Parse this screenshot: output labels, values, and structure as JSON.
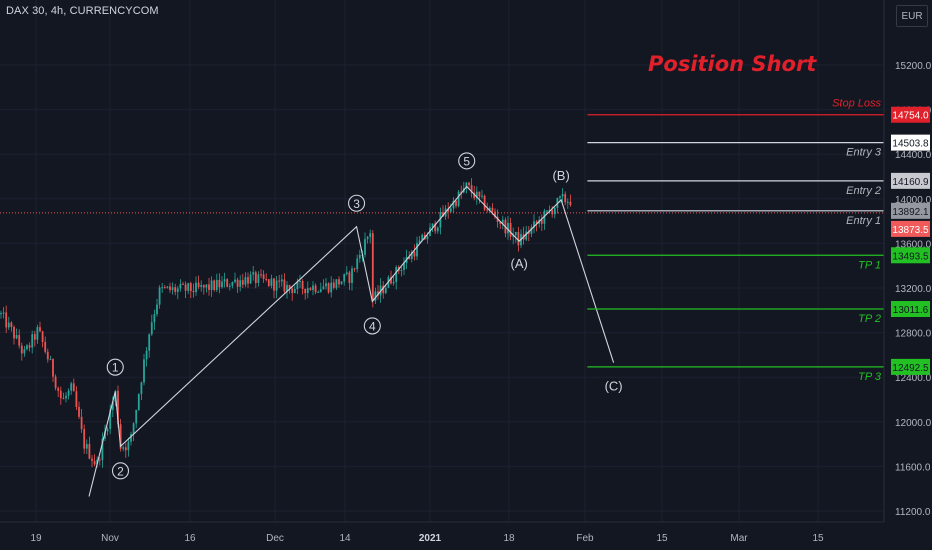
{
  "header": {
    "symbol": "DAX 30, 4h, CURRENCYCOM",
    "currency": "EUR",
    "annotation_title": "Position Short"
  },
  "colors": {
    "background": "#131722",
    "grid": "#1c2030",
    "axis_text": "#b2b5be",
    "up_candle": "#26a69a",
    "down_candle": "#ef5350",
    "wave_line": "#d1d4dc",
    "stop_loss": "#e0202a",
    "entry": "#d1d4dc",
    "take_profit": "#22c022",
    "current_price": "#f05a5a",
    "title": "#e0202a"
  },
  "chart_data": {
    "type": "candlestick",
    "title": "DAX 30, 4h, CURRENCYCOM",
    "ylim": [
      11100,
      15700
    ],
    "y_ticks": [
      {
        "value": 15200,
        "label": "15200.0"
      },
      {
        "value": 14800,
        "label": "14800.0"
      },
      {
        "value": 14400,
        "label": "14400.0"
      },
      {
        "value": 14000,
        "label": "14000.0"
      },
      {
        "value": 13600,
        "label": "13600.0"
      },
      {
        "value": 13200,
        "label": "13200.0"
      },
      {
        "value": 12800,
        "label": "12800.0"
      },
      {
        "value": 12400,
        "label": "12400.0"
      },
      {
        "value": 12000,
        "label": "12000.0"
      },
      {
        "value": 11600,
        "label": "11600.0"
      },
      {
        "value": 11200,
        "label": "11200.0"
      }
    ],
    "x_ticks": [
      {
        "label": "19",
        "bold": false
      },
      {
        "label": "Nov",
        "bold": false
      },
      {
        "label": "16",
        "bold": false
      },
      {
        "label": "Dec",
        "bold": false
      },
      {
        "label": "14",
        "bold": false
      },
      {
        "label": "2021",
        "bold": true
      },
      {
        "label": "18",
        "bold": false
      },
      {
        "label": "Feb",
        "bold": false
      },
      {
        "label": "15",
        "bold": false
      },
      {
        "label": "Mar",
        "bold": false
      },
      {
        "label": "15",
        "bold": false
      }
    ],
    "wave_path": [
      {
        "date": "2020-10-28",
        "price": 11330
      },
      {
        "date": "2020-11-02",
        "price": 12270
      },
      {
        "date": "2020-11-03",
        "price": 11780
      },
      {
        "date": "2020-12-18",
        "price": 13750
      },
      {
        "date": "2020-12-21",
        "price": 13080
      },
      {
        "date": "2021-01-08",
        "price": 14110
      },
      {
        "date": "2021-01-18",
        "price": 13620
      },
      {
        "date": "2021-01-26",
        "price": 13990
      },
      {
        "date": "2021-02-05",
        "price": 12530
      }
    ],
    "wave_labels": [
      {
        "text": "1",
        "circled": true,
        "date": "2020-11-02",
        "price": 12490
      },
      {
        "text": "2",
        "circled": true,
        "date": "2020-11-03",
        "price": 11560
      },
      {
        "text": "3",
        "circled": true,
        "date": "2020-12-18",
        "price": 13960
      },
      {
        "text": "4",
        "circled": true,
        "date": "2020-12-21",
        "price": 12860
      },
      {
        "text": "5",
        "circled": true,
        "date": "2021-01-08",
        "price": 14340
      },
      {
        "text": "(A)",
        "circled": false,
        "date": "2021-01-18",
        "price": 13420
      },
      {
        "text": "(B)",
        "circled": false,
        "date": "2021-01-26",
        "price": 14210
      },
      {
        "text": "(C)",
        "circled": false,
        "date": "2021-02-05",
        "price": 12320
      }
    ],
    "levels": [
      {
        "label": "Stop Loss",
        "price": 14754.0,
        "price_label": "14754.0",
        "kind": "stop"
      },
      {
        "label": "Entry 3",
        "price": 14503.8,
        "price_label": "14503.8",
        "kind": "entry"
      },
      {
        "label": "Entry 2",
        "price": 14160.9,
        "price_label": "14160.9",
        "kind": "entry"
      },
      {
        "label": "Entry 1",
        "price": 13892.1,
        "price_label": "13892.1",
        "kind": "entry"
      },
      {
        "label": "TP 1",
        "price": 13493.5,
        "price_label": "13493.5",
        "kind": "tp"
      },
      {
        "label": "TP 2",
        "price": 13011.6,
        "price_label": "13011.6",
        "kind": "tp"
      },
      {
        "label": "TP 3",
        "price": 12492.5,
        "price_label": "12492.5",
        "kind": "tp"
      }
    ],
    "current_price": {
      "price": 13873.5,
      "label": "13873.5"
    }
  }
}
